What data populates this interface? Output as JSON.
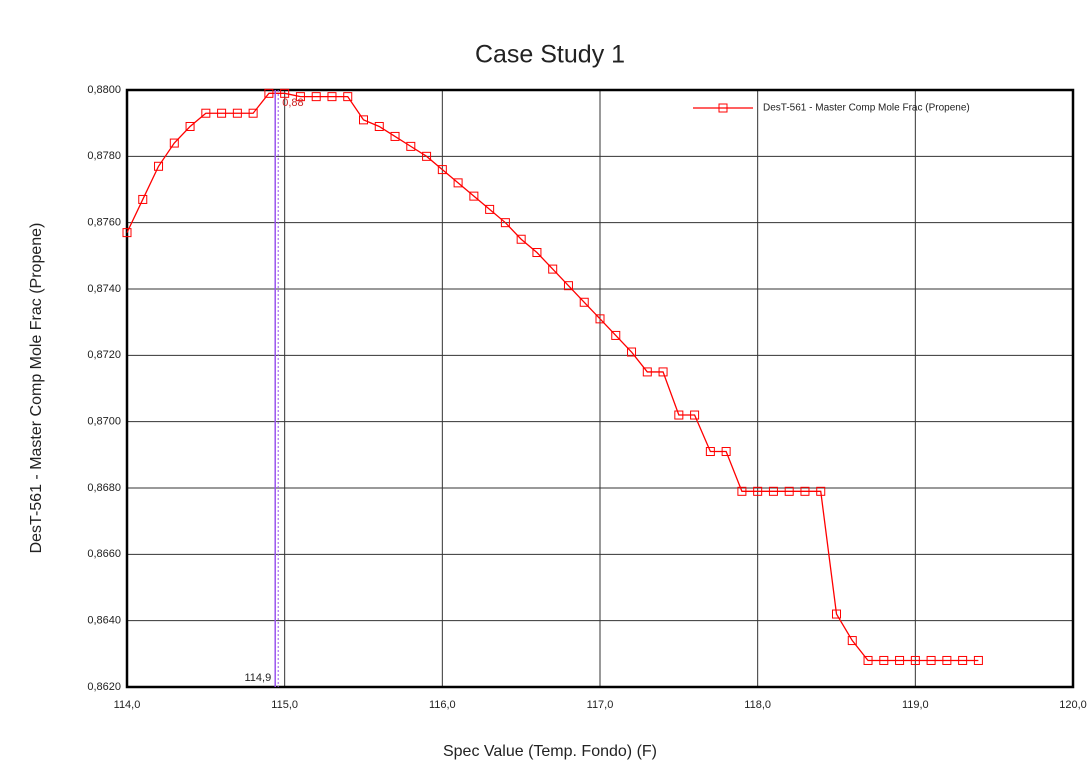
{
  "chart_data": {
    "type": "line",
    "title": "Case Study 1",
    "xlabel": "Spec Value (Temp. Fondo) (F)",
    "ylabel": "DesT-561 - Master Comp Mole Frac (Propene)",
    "x": [
      114.0,
      114.1,
      114.2,
      114.3,
      114.4,
      114.5,
      114.6,
      114.7,
      114.8,
      114.9,
      115.0,
      115.1,
      115.2,
      115.3,
      115.4,
      115.5,
      115.6,
      115.7,
      115.8,
      115.9,
      116.0,
      116.1,
      116.2,
      116.3,
      116.4,
      116.5,
      116.6,
      116.7,
      116.8,
      116.9,
      117.0,
      117.1,
      117.2,
      117.3,
      117.4,
      117.5,
      117.6,
      117.7,
      117.8,
      117.9,
      118.0,
      118.1,
      118.2,
      118.3,
      118.4,
      118.5,
      118.6,
      118.7,
      118.8,
      118.9,
      119.0,
      119.1,
      119.2,
      119.3,
      119.4
    ],
    "series": [
      {
        "name": "DesT-561 - Master Comp Mole Frac (Propene)",
        "color": "#ff0000",
        "values": [
          0.8757,
          0.8767,
          0.8777,
          0.8784,
          0.8789,
          0.8793,
          0.8793,
          0.8793,
          0.8793,
          0.8799,
          0.8799,
          0.8798,
          0.8798,
          0.8798,
          0.8798,
          0.8791,
          0.8789,
          0.8786,
          0.8783,
          0.878,
          0.8776,
          0.8772,
          0.8768,
          0.8764,
          0.876,
          0.8755,
          0.8751,
          0.8746,
          0.8741,
          0.8736,
          0.8731,
          0.8726,
          0.8721,
          0.8715,
          0.8715,
          0.8702,
          0.8702,
          0.8691,
          0.8691,
          0.8679,
          0.8679,
          0.8679,
          0.8679,
          0.8679,
          0.8679,
          0.8642,
          0.8634,
          0.8628,
          0.8628,
          0.8628,
          0.8628,
          0.8628,
          0.8628,
          0.8628,
          0.8628
        ]
      }
    ],
    "xlim": [
      114.0,
      120.0
    ],
    "ylim": [
      0.862,
      0.88
    ],
    "xticks": [
      {
        "value": 114,
        "label": "114,0"
      },
      {
        "value": 115,
        "label": "115,0"
      },
      {
        "value": 116,
        "label": "116,0"
      },
      {
        "value": 117,
        "label": "117,0"
      },
      {
        "value": 118,
        "label": "118,0"
      },
      {
        "value": 119,
        "label": "119,0"
      },
      {
        "value": 120,
        "label": "120,0"
      }
    ],
    "yticks": [
      {
        "value": 0.862,
        "label": "0,8620"
      },
      {
        "value": 0.864,
        "label": "0,8640"
      },
      {
        "value": 0.866,
        "label": "0,8660"
      },
      {
        "value": 0.868,
        "label": "0,8680"
      },
      {
        "value": 0.87,
        "label": "0,8700"
      },
      {
        "value": 0.872,
        "label": "0,8720"
      },
      {
        "value": 0.874,
        "label": "0,8740"
      },
      {
        "value": 0.876,
        "label": "0,8760"
      },
      {
        "value": 0.878,
        "label": "0,8780"
      },
      {
        "value": 0.88,
        "label": "0,8800"
      }
    ],
    "grid": true,
    "legend": "upper right",
    "cursor": {
      "x": 114.94,
      "y": 0.88,
      "x_label": "114,9",
      "y_label": "0,88",
      "color": "#9955ee"
    }
  }
}
